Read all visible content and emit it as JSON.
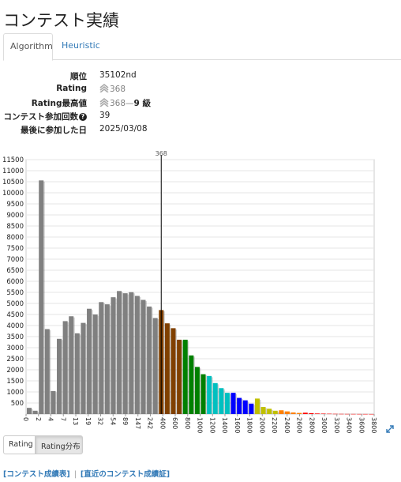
{
  "page": {
    "title": "コンテスト実績"
  },
  "tabs": [
    {
      "label": "Algorithm",
      "active": true
    },
    {
      "label": "Heuristic",
      "active": false
    }
  ],
  "info": {
    "rank": {
      "label": "順位",
      "value": "35102nd"
    },
    "rating": {
      "label": "Rating",
      "value": "368"
    },
    "highest": {
      "label": "Rating最高値",
      "value": "368",
      "dash": "—",
      "kyu": "9 級"
    },
    "contests": {
      "label": "コンテスト参加回数",
      "help_icon": "question-circle-icon",
      "value": "39"
    },
    "last_date": {
      "label": "最後に参加した日",
      "value": "2025/03/08"
    }
  },
  "colors": {
    "rating_gray": "#808080",
    "link": "#337ab7"
  },
  "chart_data": {
    "type": "bar",
    "marker": {
      "label": "368"
    },
    "y_ticks": [
      "500",
      "1000",
      "1500",
      "2000",
      "2500",
      "3000",
      "3500",
      "4000",
      "4500",
      "5000",
      "5500",
      "6000",
      "6500",
      "7000",
      "7500",
      "8000",
      "8500",
      "9000",
      "9500",
      "10000",
      "10500",
      "11000",
      "11500"
    ],
    "ylim": [
      0,
      11500
    ],
    "x_tick_labels": [
      "0",
      "2",
      "4",
      "7",
      "13",
      "19",
      "32",
      "54",
      "89",
      "147",
      "242",
      "400",
      "600",
      "800",
      "1000",
      "1200",
      "1400",
      "1600",
      "1800",
      "2000",
      "2200",
      "2400",
      "2600",
      "2800",
      "3000",
      "3200",
      "3400",
      "3600",
      "3800"
    ],
    "bars": [
      {
        "value": 280,
        "color": "#808080"
      },
      {
        "value": 150,
        "color": "#808080"
      },
      {
        "value": 10560,
        "color": "#808080"
      },
      {
        "value": 3840,
        "color": "#808080"
      },
      {
        "value": 1040,
        "color": "#808080"
      },
      {
        "value": 3400,
        "color": "#808080"
      },
      {
        "value": 4200,
        "color": "#808080"
      },
      {
        "value": 4420,
        "color": "#808080"
      },
      {
        "value": 3650,
        "color": "#808080"
      },
      {
        "value": 4120,
        "color": "#808080"
      },
      {
        "value": 4760,
        "color": "#808080"
      },
      {
        "value": 4500,
        "color": "#808080"
      },
      {
        "value": 5060,
        "color": "#808080"
      },
      {
        "value": 4960,
        "color": "#808080"
      },
      {
        "value": 5280,
        "color": "#808080"
      },
      {
        "value": 5560,
        "color": "#808080"
      },
      {
        "value": 5460,
        "color": "#808080"
      },
      {
        "value": 5510,
        "color": "#808080"
      },
      {
        "value": 5340,
        "color": "#808080"
      },
      {
        "value": 5160,
        "color": "#808080"
      },
      {
        "value": 4860,
        "color": "#808080"
      },
      {
        "value": 4340,
        "color": "#808080"
      },
      {
        "value": 4700,
        "color": "#804000"
      },
      {
        "value": 4100,
        "color": "#804000"
      },
      {
        "value": 3880,
        "color": "#804000"
      },
      {
        "value": 3360,
        "color": "#804000"
      },
      {
        "value": 3360,
        "color": "#008000"
      },
      {
        "value": 2650,
        "color": "#008000"
      },
      {
        "value": 2130,
        "color": "#008000"
      },
      {
        "value": 1800,
        "color": "#008000"
      },
      {
        "value": 1720,
        "color": "#00C0C0"
      },
      {
        "value": 1400,
        "color": "#00C0C0"
      },
      {
        "value": 1170,
        "color": "#00C0C0"
      },
      {
        "value": 960,
        "color": "#00C0C0"
      },
      {
        "value": 960,
        "color": "#0000FF"
      },
      {
        "value": 730,
        "color": "#0000FF"
      },
      {
        "value": 620,
        "color": "#0000FF"
      },
      {
        "value": 470,
        "color": "#0000FF"
      },
      {
        "value": 700,
        "color": "#C0C000"
      },
      {
        "value": 320,
        "color": "#C0C000"
      },
      {
        "value": 240,
        "color": "#C0C000"
      },
      {
        "value": 150,
        "color": "#C0C000"
      },
      {
        "value": 170,
        "color": "#FF8000"
      },
      {
        "value": 120,
        "color": "#FF8000"
      },
      {
        "value": 70,
        "color": "#FF8000"
      },
      {
        "value": 50,
        "color": "#FF8000"
      },
      {
        "value": 60,
        "color": "#FF0000"
      },
      {
        "value": 40,
        "color": "#FF0000"
      },
      {
        "value": 25,
        "color": "#FF0000"
      },
      {
        "value": 20,
        "color": "#FF0000"
      },
      {
        "value": 15,
        "color": "#FF0000"
      },
      {
        "value": 10,
        "color": "#FF0000"
      },
      {
        "value": 8,
        "color": "#FF0000"
      },
      {
        "value": 6,
        "color": "#FF0000"
      },
      {
        "value": 5,
        "color": "#FF0000"
      },
      {
        "value": 4,
        "color": "#FF0000"
      },
      {
        "value": 3,
        "color": "#FF0000"
      },
      {
        "value": 2,
        "color": "#FF0000"
      }
    ]
  },
  "buttons": {
    "rating": "Rating",
    "distribution": "Rating分布"
  },
  "footer": {
    "link1": "[コンテスト成績表]",
    "link2": "[直近のコンテスト成績証]"
  }
}
